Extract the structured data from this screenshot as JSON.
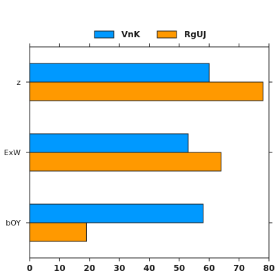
{
  "chart_data": {
    "type": "bar",
    "orientation": "horizontal",
    "categories": [
      "z",
      "ExW",
      "bOY"
    ],
    "series": [
      {
        "name": "VnK",
        "color": "#0099ff",
        "values": [
          60,
          53,
          58
        ]
      },
      {
        "name": "RgUJ",
        "color": "#ff9900",
        "values": [
          78,
          64,
          19
        ]
      }
    ],
    "xlim": [
      0,
      80
    ],
    "xticks": [
      0,
      10,
      20,
      30,
      40,
      50,
      60,
      70,
      80
    ],
    "title": "",
    "xlabel": "",
    "ylabel": "",
    "grid": false,
    "legend_position": "top-center"
  }
}
